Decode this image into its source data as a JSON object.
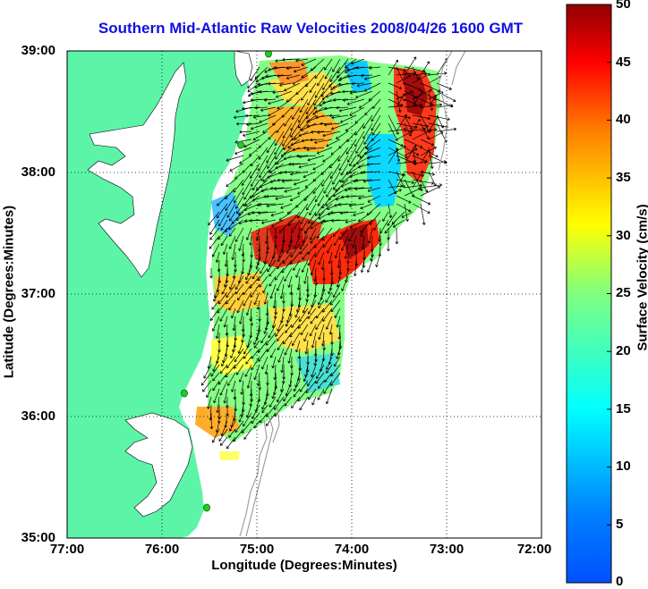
{
  "title": "Southern Mid-Atlantic Raw Velocities 2008/04/26 1600 GMT",
  "xlabel": "Longitude (Degrees:Minutes)",
  "ylabel": "Latitude (Degrees:Minutes)",
  "x_ticks": [
    "77:00",
    "76:00",
    "75:00",
    "74:00",
    "73:00",
    "72:00"
  ],
  "y_ticks": [
    "39:00",
    "38:00",
    "37:00",
    "36:00",
    "35:00"
  ],
  "colorbar": {
    "label": "Surface Velocity (cm/s)",
    "ticks": [
      "50",
      "45",
      "40",
      "35",
      "30",
      "25",
      "20",
      "15",
      "10",
      "5",
      "0"
    ],
    "min": 0,
    "max": 50,
    "colormap": "jet"
  },
  "map": {
    "lon_range": [
      -77,
      -72
    ],
    "lat_range": [
      35,
      39
    ],
    "land_color": "#5cf5a8",
    "grid_style": "dotted",
    "station_color": "#22cc22"
  }
}
